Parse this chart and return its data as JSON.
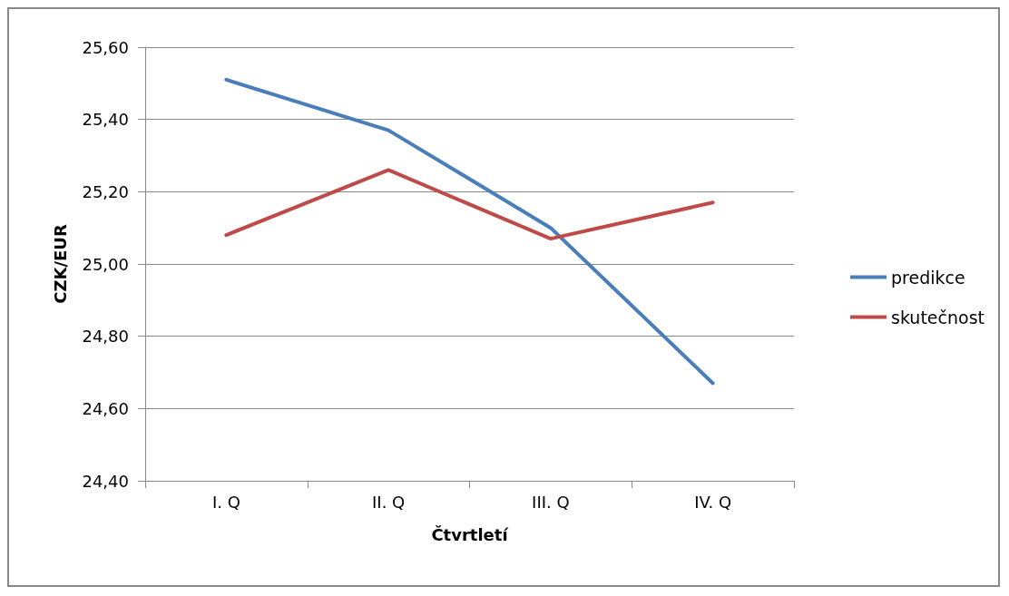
{
  "chart_data": {
    "type": "line",
    "xlabel": "Čtvrtletí",
    "ylabel": "CZK/EUR",
    "categories": [
      "I. Q",
      "II. Q",
      "III. Q",
      "IV. Q"
    ],
    "series": [
      {
        "name": "predikce",
        "color": "#4a7ebb",
        "values": [
          25.51,
          25.37,
          25.1,
          24.67
        ]
      },
      {
        "name": "skutečnost",
        "color": "#be4b48",
        "values": [
          25.08,
          25.26,
          25.07,
          25.17
        ]
      }
    ],
    "ylim": [
      24.4,
      25.6
    ],
    "yticks": [
      {
        "value": 24.4,
        "label": "24,40"
      },
      {
        "value": 24.6,
        "label": "24,60"
      },
      {
        "value": 24.8,
        "label": "24,80"
      },
      {
        "value": 25.0,
        "label": "25,00"
      },
      {
        "value": 25.2,
        "label": "25,20"
      },
      {
        "value": 25.4,
        "label": "25,40"
      },
      {
        "value": 25.6,
        "label": "25,60"
      }
    ],
    "grid": "y",
    "legend": "right",
    "marker": "none",
    "line_style": "solid"
  }
}
